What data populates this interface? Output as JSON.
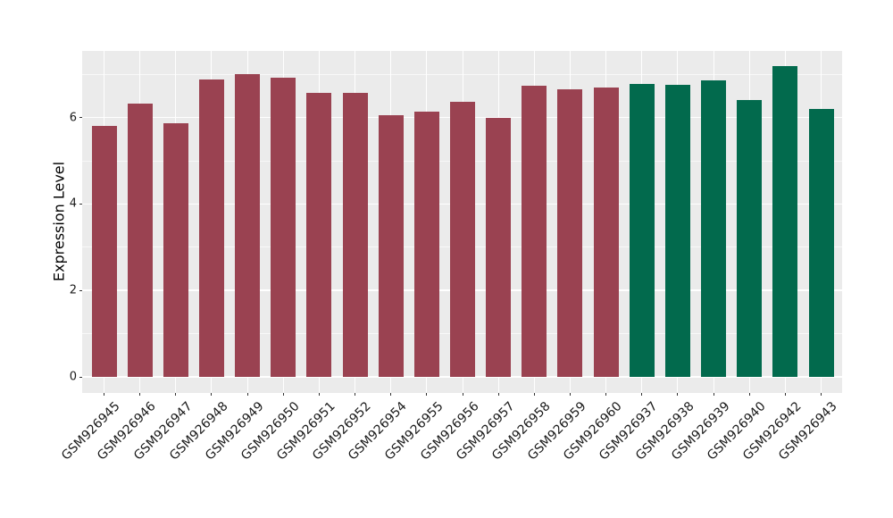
{
  "chart_data": {
    "type": "bar",
    "title": "",
    "xlabel": "",
    "ylabel": "Expression Level",
    "categories": [
      "GSM926945",
      "GSM926946",
      "GSM926947",
      "GSM926948",
      "GSM926949",
      "GSM926950",
      "GSM926951",
      "GSM926952",
      "GSM926954",
      "GSM926955",
      "GSM926956",
      "GSM926957",
      "GSM926958",
      "GSM926959",
      "GSM926960",
      "GSM926937",
      "GSM926938",
      "GSM926939",
      "GSM926940",
      "GSM926942",
      "GSM926943"
    ],
    "values": [
      5.81,
      6.32,
      5.86,
      6.89,
      7.01,
      6.93,
      6.57,
      6.58,
      6.06,
      6.14,
      6.36,
      6.0,
      6.74,
      6.65,
      6.69,
      6.77,
      6.76,
      6.86,
      6.41,
      7.2,
      6.2
    ],
    "bar_colors": [
      "#9A4251",
      "#9A4251",
      "#9A4251",
      "#9A4251",
      "#9A4251",
      "#9A4251",
      "#9A4251",
      "#9A4251",
      "#9A4251",
      "#9A4251",
      "#9A4251",
      "#9A4251",
      "#9A4251",
      "#9A4251",
      "#9A4251",
      "#026A4D",
      "#026A4D",
      "#026A4D",
      "#026A4D",
      "#026A4D",
      "#026A4D"
    ],
    "group_colors": {
      "left_group": "#9A4251",
      "right_group": "#026A4D"
    },
    "yticks": [
      0,
      2,
      4,
      6
    ],
    "minor_gridlines": [
      1,
      3,
      5,
      7
    ],
    "ylim": [
      0,
      7.5
    ],
    "grid": "on",
    "legend": "none",
    "panel_background": "#EBEBEB",
    "gridline_color": "#FFFFFF",
    "axis_text_color": "#1a1a1a"
  }
}
